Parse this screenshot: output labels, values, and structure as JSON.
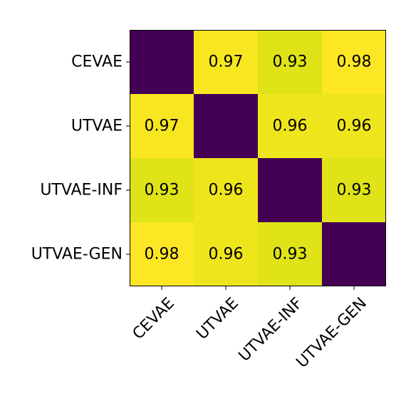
{
  "chart_data": {
    "type": "heatmap",
    "title": "",
    "xlabel": "",
    "ylabel": "",
    "rows": [
      "CEVAE",
      "UTVAE",
      "UTVAE-INF",
      "UTVAE-GEN"
    ],
    "columns": [
      "CEVAE",
      "UTVAE",
      "UTVAE-INF",
      "UTVAE-GEN"
    ],
    "values": [
      [
        null,
        0.97,
        0.93,
        0.98
      ],
      [
        0.97,
        null,
        0.96,
        0.96
      ],
      [
        0.93,
        0.96,
        null,
        0.93
      ],
      [
        0.98,
        0.96,
        0.93,
        null
      ]
    ],
    "colors": {
      "diagonal": "#440154",
      "0.98": "#fde725",
      "0.97": "#f8e621",
      "0.96": "#efe51c",
      "0.93": "#dfe318"
    },
    "colormap": "viridis",
    "grid": false,
    "legend": "none"
  }
}
